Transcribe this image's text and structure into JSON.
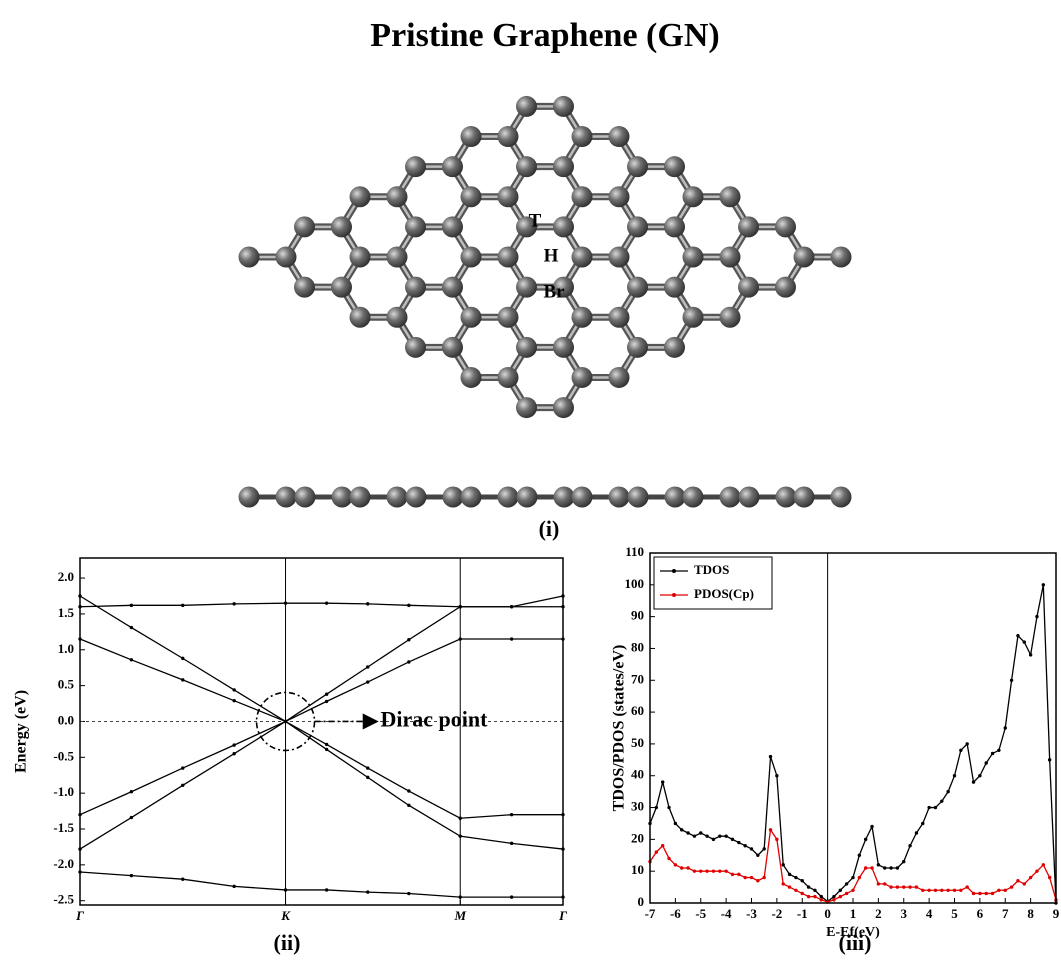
{
  "title": "Pristine Graphene (GN)",
  "structure": {
    "site_labels": [
      "T",
      "H",
      "Br"
    ],
    "panel_label": "(i)"
  },
  "chart_data": [
    {
      "type": "line",
      "panel_label": "(ii)",
      "ylabel": "Energy (eV)",
      "annotation": "Dirac point",
      "x": [
        0,
        0.25,
        0.5,
        0.75,
        1,
        1.2,
        1.4,
        1.6,
        1.85,
        2.1,
        2.35
      ],
      "xlim": [
        0,
        2.35
      ],
      "xticks": [
        {
          "value": 0,
          "label": "Γ"
        },
        {
          "value": 1,
          "label": "K"
        },
        {
          "value": 1.85,
          "label": "M"
        },
        {
          "value": 2.35,
          "label": "Γ"
        }
      ],
      "vlines_at_xticks": true,
      "ylim": [
        -2.56,
        2.28
      ],
      "yticks": [
        -2.5,
        {
          "value": -2,
          "label": "-2.0"
        },
        -1.5,
        {
          "value": -1,
          "label": "-1.0"
        },
        -0.5,
        {
          "value": 0,
          "label": "0.0"
        },
        0.5,
        {
          "value": 1,
          "label": "1.0"
        },
        1.5,
        {
          "value": 2,
          "label": "2.0"
        }
      ],
      "hline": 0,
      "series": [
        {
          "color": "#000000",
          "values": [
            1.15,
            0.86,
            0.58,
            0.29,
            0,
            0.28,
            0.55,
            0.83,
            1.15,
            1.15,
            1.15
          ]
        },
        {
          "color": "#000000",
          "values": [
            1.75,
            1.31,
            0.88,
            0.44,
            0,
            0.38,
            0.76,
            1.14,
            1.6,
            1.6,
            1.75
          ]
        },
        {
          "color": "#000000",
          "values": [
            1.6,
            1.62,
            1.62,
            1.64,
            1.65,
            1.65,
            1.64,
            1.62,
            1.6,
            1.6,
            1.6
          ]
        },
        {
          "color": "#000000",
          "values": [
            -1.3,
            -0.98,
            -0.65,
            -0.33,
            0,
            -0.32,
            -0.65,
            -0.97,
            -1.35,
            -1.3,
            -1.3
          ]
        },
        {
          "color": "#000000",
          "values": [
            -1.78,
            -1.34,
            -0.89,
            -0.45,
            0,
            -0.39,
            -0.78,
            -1.17,
            -1.6,
            -1.7,
            -1.78
          ]
        },
        {
          "color": "#000000",
          "values": [
            -2.1,
            -2.15,
            -2.2,
            -2.3,
            -2.35,
            -2.35,
            -2.38,
            -2.4,
            -2.45,
            -2.45,
            -2.45
          ]
        }
      ]
    },
    {
      "type": "line",
      "panel_label": "(iii)",
      "xlabel": "E-Ef(eV)",
      "ylabel": "TDOS/PDOS (states/eV)",
      "legend": "upper left",
      "x": [
        -7,
        -6.75,
        -6.5,
        -6.25,
        -6,
        -5.75,
        -5.5,
        -5.25,
        -5,
        -4.75,
        -4.5,
        -4.25,
        -4,
        -3.75,
        -3.5,
        -3.25,
        -3,
        -2.75,
        -2.5,
        -2.25,
        -2,
        -1.75,
        -1.5,
        -1.25,
        -1,
        -0.75,
        -0.5,
        -0.25,
        0,
        0.25,
        0.5,
        0.75,
        1,
        1.25,
        1.5,
        1.75,
        2,
        2.25,
        2.5,
        2.75,
        3,
        3.25,
        3.5,
        3.75,
        4,
        4.25,
        4.5,
        4.75,
        5,
        5.25,
        5.5,
        5.75,
        6,
        6.25,
        6.5,
        6.75,
        7,
        7.25,
        7.5,
        7.75,
        8,
        8.25,
        8.5,
        8.75,
        9
      ],
      "xlim": [
        -7,
        9
      ],
      "xticks": [
        -7,
        -6,
        -5,
        -4,
        -3,
        -2,
        -1,
        0,
        1,
        2,
        3,
        4,
        5,
        6,
        7,
        8,
        9
      ],
      "ylim": [
        0,
        110
      ],
      "yticks": [
        0,
        10,
        20,
        30,
        40,
        50,
        60,
        70,
        80,
        90,
        100,
        110
      ],
      "vline": 0,
      "series": [
        {
          "name": "TDOS",
          "color": "#000000",
          "values": [
            25,
            30,
            38,
            30,
            25,
            23,
            22,
            21,
            22,
            21,
            20,
            21,
            21,
            20,
            19,
            18,
            17,
            15,
            17,
            46,
            40,
            12,
            9,
            8,
            7,
            5,
            4,
            2,
            0.5,
            2,
            4,
            6,
            8,
            15,
            20,
            24,
            12,
            11,
            11,
            11,
            13,
            18,
            22,
            25,
            30,
            30,
            32,
            35,
            40,
            48,
            50,
            38,
            40,
            44,
            47,
            48,
            55,
            70,
            84,
            82,
            78,
            90,
            100,
            45,
            0
          ]
        },
        {
          "name": "PDOS(Cp)",
          "color": "#e00000",
          "values": [
            13,
            16,
            18,
            14,
            12,
            11,
            11,
            10,
            10,
            10,
            10,
            10,
            10,
            9,
            9,
            8,
            8,
            7,
            8,
            23,
            20,
            6,
            5,
            4,
            3,
            2,
            2,
            1,
            0.3,
            1,
            2,
            3,
            4,
            8,
            11,
            11,
            6,
            6,
            5,
            5,
            5,
            5,
            5,
            4,
            4,
            4,
            4,
            4,
            4,
            4,
            5,
            3,
            3,
            3,
            3,
            4,
            4,
            5,
            7,
            6,
            8,
            10,
            12,
            8,
            1
          ]
        }
      ]
    }
  ]
}
